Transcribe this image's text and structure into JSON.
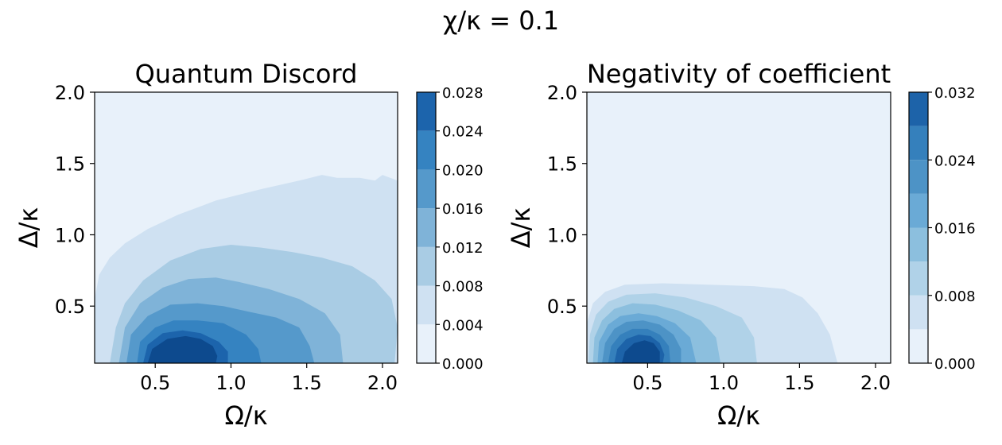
{
  "figure": {
    "suptitle": "χ/κ = 0.1"
  },
  "chart_data": [
    {
      "type": "contour",
      "title": "Quantum Discord",
      "xlabel": "Ω/κ",
      "ylabel": "Δ/κ",
      "xlim": [
        0.1,
        2.1
      ],
      "ylim": [
        0.1,
        2.0
      ],
      "xticks": [
        0.5,
        1.0,
        1.5,
        2.0
      ],
      "xtick_labels": [
        "0.5",
        "1.0",
        "1.5",
        "2.0"
      ],
      "yticks": [
        0.5,
        1.0,
        1.5,
        2.0
      ],
      "ytick_labels": [
        "0.5",
        "1.0",
        "1.5",
        "2.0"
      ],
      "colormap": "Blues",
      "colorbar": {
        "levels": [
          0.0,
          0.004,
          0.008,
          0.012,
          0.016,
          0.02,
          0.024,
          0.028
        ],
        "tick_labels": [
          "0.000",
          "0.004",
          "0.008",
          "0.012",
          "0.016",
          "0.020",
          "0.024",
          "0.028"
        ]
      },
      "band_colors": [
        "#e8f1fa",
        "#cfe1f2",
        "#a9cce4",
        "#7fb3d8",
        "#5599cb",
        "#3583c1",
        "#1c64ac",
        "#0d4a8e"
      ],
      "contours": [
        {
          "level": 0.004,
          "points": [
            [
              0.1,
              0.1
            ],
            [
              0.1,
              0.55
            ],
            [
              0.13,
              0.72
            ],
            [
              0.2,
              0.84
            ],
            [
              0.3,
              0.94
            ],
            [
              0.45,
              1.04
            ],
            [
              0.65,
              1.14
            ],
            [
              0.9,
              1.24
            ],
            [
              1.2,
              1.32
            ],
            [
              1.45,
              1.38
            ],
            [
              1.6,
              1.42
            ],
            [
              1.7,
              1.4
            ],
            [
              1.85,
              1.4
            ],
            [
              1.95,
              1.38
            ],
            [
              2.0,
              1.42
            ],
            [
              2.1,
              1.38
            ],
            [
              2.1,
              0.1
            ]
          ]
        },
        {
          "level": 0.008,
          "points": [
            [
              0.2,
              0.1
            ],
            [
              0.24,
              0.35
            ],
            [
              0.3,
              0.52
            ],
            [
              0.42,
              0.68
            ],
            [
              0.6,
              0.82
            ],
            [
              0.8,
              0.9
            ],
            [
              1.0,
              0.93
            ],
            [
              1.2,
              0.91
            ],
            [
              1.4,
              0.88
            ],
            [
              1.6,
              0.84
            ],
            [
              1.8,
              0.78
            ],
            [
              1.95,
              0.68
            ],
            [
              2.06,
              0.55
            ],
            [
              2.1,
              0.35
            ],
            [
              2.08,
              0.1
            ]
          ]
        },
        {
          "level": 0.012,
          "points": [
            [
              0.26,
              0.1
            ],
            [
              0.3,
              0.35
            ],
            [
              0.4,
              0.52
            ],
            [
              0.55,
              0.63
            ],
            [
              0.72,
              0.69
            ],
            [
              0.9,
              0.7
            ],
            [
              1.05,
              0.67
            ],
            [
              1.25,
              0.62
            ],
            [
              1.45,
              0.55
            ],
            [
              1.62,
              0.45
            ],
            [
              1.72,
              0.3
            ],
            [
              1.74,
              0.1
            ]
          ]
        },
        {
          "level": 0.016,
          "points": [
            [
              0.31,
              0.1
            ],
            [
              0.34,
              0.3
            ],
            [
              0.45,
              0.43
            ],
            [
              0.6,
              0.51
            ],
            [
              0.78,
              0.52
            ],
            [
              0.95,
              0.5
            ],
            [
              1.12,
              0.46
            ],
            [
              1.3,
              0.42
            ],
            [
              1.45,
              0.35
            ],
            [
              1.52,
              0.22
            ],
            [
              1.55,
              0.1
            ]
          ]
        },
        {
          "level": 0.02,
          "points": [
            [
              0.38,
              0.1
            ],
            [
              0.4,
              0.25
            ],
            [
              0.5,
              0.35
            ],
            [
              0.62,
              0.4
            ],
            [
              0.78,
              0.4
            ],
            [
              0.95,
              0.38
            ],
            [
              1.1,
              0.3
            ],
            [
              1.18,
              0.2
            ],
            [
              1.2,
              0.1
            ]
          ]
        },
        {
          "level": 0.024,
          "points": [
            [
              0.42,
              0.1
            ],
            [
              0.45,
              0.23
            ],
            [
              0.55,
              0.31
            ],
            [
              0.68,
              0.33
            ],
            [
              0.8,
              0.31
            ],
            [
              0.92,
              0.25
            ],
            [
              0.98,
              0.18
            ],
            [
              0.98,
              0.1
            ]
          ]
        },
        {
          "level": 0.028,
          "points": [
            [
              0.45,
              0.1
            ],
            [
              0.48,
              0.2
            ],
            [
              0.58,
              0.27
            ],
            [
              0.7,
              0.29
            ],
            [
              0.8,
              0.27
            ],
            [
              0.88,
              0.22
            ],
            [
              0.91,
              0.15
            ],
            [
              0.9,
              0.1
            ]
          ]
        }
      ]
    },
    {
      "type": "contour",
      "title": "Negativity of coefficient",
      "xlabel": "Ω/κ",
      "ylabel": "Δ/κ",
      "xlim": [
        0.1,
        2.1
      ],
      "ylim": [
        0.1,
        2.0
      ],
      "xticks": [
        0.5,
        1.0,
        1.5,
        2.0
      ],
      "xtick_labels": [
        "0.5",
        "1.0",
        "1.5",
        "2.0"
      ],
      "yticks": [
        0.5,
        1.0,
        1.5,
        2.0
      ],
      "ytick_labels": [
        "0.5",
        "1.0",
        "1.5",
        "2.0"
      ],
      "colormap": "Blues",
      "colorbar": {
        "levels": [
          0.0,
          0.004,
          0.008,
          0.012,
          0.016,
          0.02,
          0.024,
          0.028,
          0.032
        ],
        "tick_labels": [
          "0.000",
          "0.008",
          "0.016",
          "0.024",
          "0.032"
        ],
        "tick_values": [
          0.0,
          0.008,
          0.016,
          0.024,
          0.032
        ]
      },
      "band_colors": [
        "#e8f1fa",
        "#cfe1f2",
        "#b0d2e8",
        "#8cbfde",
        "#6aaad6",
        "#4d93c6",
        "#3580bc",
        "#1d63a9",
        "#0d4a8e"
      ],
      "contours": [
        {
          "level": 0.004,
          "points": [
            [
              0.1,
              0.1
            ],
            [
              0.1,
              0.38
            ],
            [
              0.14,
              0.52
            ],
            [
              0.22,
              0.6
            ],
            [
              0.35,
              0.65
            ],
            [
              0.6,
              0.66
            ],
            [
              0.9,
              0.65
            ],
            [
              1.2,
              0.64
            ],
            [
              1.4,
              0.62
            ],
            [
              1.52,
              0.56
            ],
            [
              1.62,
              0.45
            ],
            [
              1.7,
              0.3
            ],
            [
              1.75,
              0.1
            ]
          ]
        },
        {
          "level": 0.008,
          "points": [
            [
              0.11,
              0.1
            ],
            [
              0.12,
              0.3
            ],
            [
              0.16,
              0.44
            ],
            [
              0.24,
              0.53
            ],
            [
              0.36,
              0.58
            ],
            [
              0.55,
              0.59
            ],
            [
              0.75,
              0.56
            ],
            [
              0.95,
              0.5
            ],
            [
              1.12,
              0.42
            ],
            [
              1.2,
              0.28
            ],
            [
              1.22,
              0.1
            ]
          ]
        },
        {
          "level": 0.012,
          "points": [
            [
              0.14,
              0.1
            ],
            [
              0.15,
              0.28
            ],
            [
              0.2,
              0.4
            ],
            [
              0.28,
              0.48
            ],
            [
              0.4,
              0.52
            ],
            [
              0.55,
              0.51
            ],
            [
              0.7,
              0.47
            ],
            [
              0.85,
              0.4
            ],
            [
              0.95,
              0.28
            ],
            [
              0.98,
              0.1
            ]
          ]
        },
        {
          "level": 0.016,
          "points": [
            [
              0.17,
              0.1
            ],
            [
              0.18,
              0.25
            ],
            [
              0.24,
              0.37
            ],
            [
              0.32,
              0.43
            ],
            [
              0.44,
              0.45
            ],
            [
              0.56,
              0.43
            ],
            [
              0.68,
              0.38
            ],
            [
              0.78,
              0.28
            ],
            [
              0.82,
              0.1
            ]
          ]
        },
        {
          "level": 0.02,
          "points": [
            [
              0.2,
              0.1
            ],
            [
              0.22,
              0.24
            ],
            [
              0.28,
              0.34
            ],
            [
              0.36,
              0.39
            ],
            [
              0.47,
              0.4
            ],
            [
              0.58,
              0.37
            ],
            [
              0.67,
              0.3
            ],
            [
              0.72,
              0.2
            ],
            [
              0.72,
              0.1
            ]
          ]
        },
        {
          "level": 0.024,
          "points": [
            [
              0.24,
              0.1
            ],
            [
              0.26,
              0.22
            ],
            [
              0.32,
              0.3
            ],
            [
              0.4,
              0.34
            ],
            [
              0.5,
              0.34
            ],
            [
              0.58,
              0.3
            ],
            [
              0.64,
              0.22
            ],
            [
              0.65,
              0.1
            ]
          ]
        },
        {
          "level": 0.028,
          "points": [
            [
              0.28,
              0.1
            ],
            [
              0.3,
              0.2
            ],
            [
              0.36,
              0.27
            ],
            [
              0.44,
              0.3
            ],
            [
              0.52,
              0.29
            ],
            [
              0.58,
              0.24
            ],
            [
              0.61,
              0.16
            ],
            [
              0.6,
              0.1
            ]
          ]
        },
        {
          "level": 0.032,
          "points": [
            [
              0.33,
              0.1
            ],
            [
              0.35,
              0.18
            ],
            [
              0.41,
              0.24
            ],
            [
              0.48,
              0.26
            ],
            [
              0.54,
              0.24
            ],
            [
              0.58,
              0.18
            ],
            [
              0.58,
              0.1
            ]
          ]
        }
      ]
    }
  ]
}
